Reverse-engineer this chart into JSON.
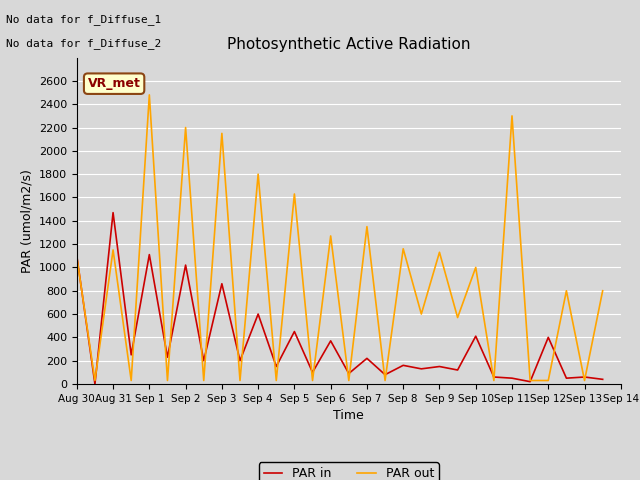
{
  "title": "Photosynthetic Active Radiation",
  "xlabel": "Time",
  "ylabel": "PAR (umol/m2/s)",
  "text_top_left_line1": "No data for f_Diffuse_1",
  "text_top_left_line2": "No data for f_Diffuse_2",
  "legend_label_box": "VR_met",
  "legend_entries": [
    "PAR in",
    "PAR out"
  ],
  "par_in_color": "#cc0000",
  "par_out_color": "#ffa500",
  "fig_background_color": "#d8d8d8",
  "plot_background_color": "#d8d8d8",
  "grid_color": "white",
  "xlim_start": 0,
  "xlim_end": 15,
  "ylim": [
    0,
    2800
  ],
  "x_ticks": [
    0,
    1,
    2,
    3,
    4,
    5,
    6,
    7,
    8,
    9,
    10,
    11,
    12,
    13,
    14,
    15
  ],
  "x_tick_labels": [
    "Aug 30",
    "Aug 31",
    "Sep 1",
    "Sep 2",
    "Sep 3",
    "Sep 4",
    "Sep 5",
    "Sep 6",
    "Sep 7",
    "Sep 8",
    "Sep 9",
    "Sep 10",
    "Sep 11",
    "Sep 12",
    "Sep 13",
    "Sep 14"
  ],
  "y_ticks": [
    0,
    200,
    400,
    600,
    800,
    1000,
    1200,
    1400,
    1600,
    1800,
    2000,
    2200,
    2400,
    2600
  ],
  "par_in_x": [
    0,
    0.5,
    1,
    1.5,
    2,
    2.5,
    3,
    3.5,
    4,
    4.5,
    5,
    5.5,
    6,
    6.5,
    7,
    7.5,
    8,
    8.5,
    9,
    9.5,
    10,
    10.5,
    11,
    11.5,
    12,
    12.5,
    13,
    13.5,
    14,
    14.5
  ],
  "par_in_y": [
    1100,
    0,
    1470,
    250,
    1110,
    230,
    1020,
    200,
    860,
    200,
    600,
    150,
    450,
    100,
    370,
    90,
    220,
    80,
    160,
    130,
    150,
    120,
    410,
    60,
    50,
    20,
    400,
    50,
    60,
    40
  ],
  "par_out_x": [
    0,
    0.5,
    1,
    1.5,
    2,
    2.5,
    3,
    3.5,
    4,
    4.5,
    5,
    5.5,
    6,
    6.5,
    7,
    7.5,
    8,
    8.5,
    9,
    9.5,
    10,
    10.5,
    11,
    11.5,
    12,
    12.5,
    13,
    13.5,
    14,
    14.5
  ],
  "par_out_y": [
    1090,
    30,
    1150,
    30,
    2480,
    30,
    2200,
    30,
    2150,
    30,
    1800,
    30,
    1630,
    30,
    1270,
    30,
    1350,
    30,
    1160,
    600,
    1130,
    570,
    1000,
    30,
    2300,
    30,
    30,
    800,
    30,
    800
  ]
}
